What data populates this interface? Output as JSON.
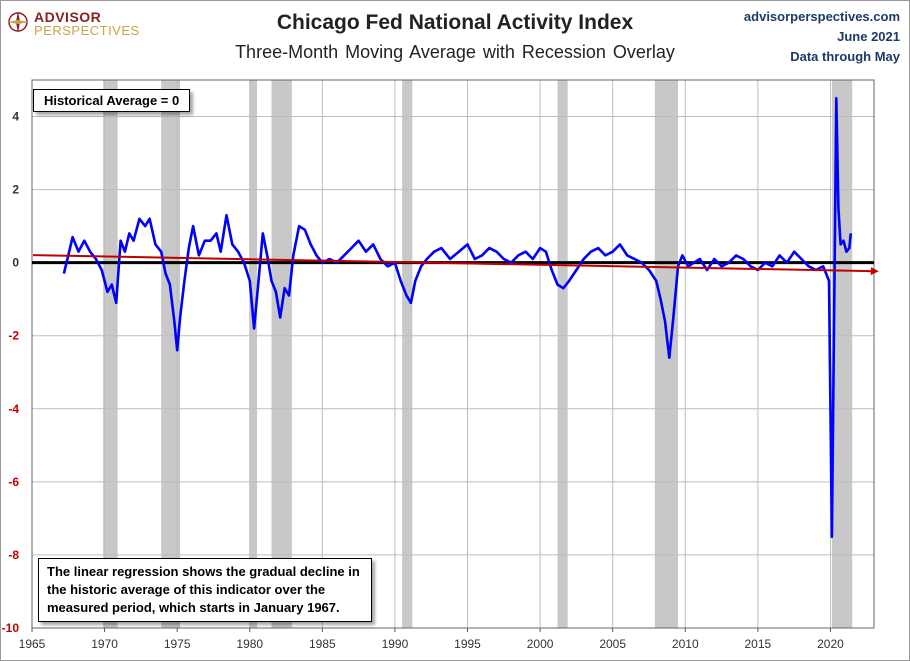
{
  "header": {
    "logo_line1": "ADVISOR",
    "logo_line2": "PERSPECTIVES",
    "title": "Chicago Fed National Activity Index",
    "subtitle": "Three-Month Moving Average with Recession Overlay",
    "source_site": "advisorperspectives.com",
    "source_date": "June 2021",
    "source_note": "Data through May"
  },
  "annotations": {
    "historical_average": "Historical Average = 0",
    "regression_note": "The linear regression shows the gradual decline in the historic average of this indicator over the measured period, which starts in January 1967."
  },
  "colors": {
    "series": "#0000ff",
    "regression": "#c00000",
    "zero_line": "#000000",
    "recession": "#c8c8c8",
    "grid": "#bdbdbd",
    "negative_tick": "#c00000",
    "logo_red": "#8b1e1e",
    "logo_gold": "#c9a24a",
    "source_text": "#1d3a6a"
  },
  "chart_data": {
    "type": "line",
    "xlim": [
      1965,
      2023
    ],
    "ylim": [
      -10,
      5
    ],
    "x_ticks": [
      1965,
      1970,
      1975,
      1980,
      1985,
      1990,
      1995,
      2000,
      2005,
      2010,
      2015,
      2020
    ],
    "y_ticks": [
      -10,
      -8,
      -6,
      -4,
      -2,
      0,
      2,
      4
    ],
    "grid": true,
    "recessions": [
      [
        1969.9,
        1970.9
      ],
      [
        1973.9,
        1975.2
      ],
      [
        1980.0,
        1980.5
      ],
      [
        1981.5,
        1982.9
      ],
      [
        1990.5,
        1991.2
      ],
      [
        2001.2,
        2001.9
      ],
      [
        2007.9,
        2009.5
      ],
      [
        2020.1,
        2021.5
      ]
    ],
    "historical_average": 0,
    "regression": {
      "x": [
        1967.0,
        2021.4
      ],
      "y": [
        0.18,
        -0.18
      ]
    },
    "series": [
      {
        "x": [
          1967.2,
          1967.5,
          1967.8,
          1968.2,
          1968.6,
          1969.0,
          1969.4,
          1969.8,
          1970.2,
          1970.5,
          1970.8,
          1971.1,
          1971.4,
          1971.7,
          1972.0,
          1972.4,
          1972.8,
          1973.1,
          1973.5,
          1973.9,
          1974.2,
          1974.5,
          1974.8,
          1975.0,
          1975.2,
          1975.5,
          1975.8,
          1976.1,
          1976.5,
          1976.9,
          1977.3,
          1977.7,
          1978.0,
          1978.4,
          1978.8,
          1979.2,
          1979.6,
          1980.0,
          1980.3,
          1980.6,
          1980.9,
          1981.2,
          1981.5,
          1981.8,
          1982.1,
          1982.4,
          1982.7,
          1983.0,
          1983.4,
          1983.8,
          1984.2,
          1984.6,
          1985.0,
          1985.5,
          1986.0,
          1986.5,
          1987.0,
          1987.5,
          1988.0,
          1988.5,
          1989.0,
          1989.5,
          1990.0,
          1990.4,
          1990.8,
          1991.1,
          1991.4,
          1991.8,
          1992.2,
          1992.7,
          1993.2,
          1993.8,
          1994.4,
          1995.0,
          1995.5,
          1996.0,
          1996.5,
          1997.0,
          1997.5,
          1998.0,
          1998.5,
          1999.0,
          1999.5,
          2000.0,
          2000.4,
          2000.8,
          2001.2,
          2001.6,
          2002.0,
          2002.5,
          2003.0,
          2003.5,
          2004.0,
          2004.5,
          2005.0,
          2005.5,
          2006.0,
          2006.5,
          2007.0,
          2007.5,
          2008.0,
          2008.3,
          2008.6,
          2008.9,
          2009.2,
          2009.5,
          2009.8,
          2010.2,
          2010.6,
          2011.0,
          2011.5,
          2012.0,
          2012.5,
          2013.0,
          2013.5,
          2014.0,
          2014.5,
          2015.0,
          2015.5,
          2016.0,
          2016.5,
          2017.0,
          2017.5,
          2018.0,
          2018.5,
          2019.0,
          2019.5,
          2019.9,
          2020.1,
          2020.25,
          2020.4,
          2020.55,
          2020.7,
          2020.9,
          2021.1,
          2021.3,
          2021.4
        ],
        "y": [
          -0.3,
          0.2,
          0.7,
          0.3,
          0.6,
          0.3,
          0.1,
          -0.2,
          -0.8,
          -0.6,
          -1.1,
          0.6,
          0.3,
          0.8,
          0.6,
          1.2,
          1.0,
          1.2,
          0.5,
          0.3,
          -0.3,
          -0.6,
          -1.6,
          -2.4,
          -1.5,
          -0.5,
          0.4,
          1.0,
          0.2,
          0.6,
          0.6,
          0.8,
          0.3,
          1.3,
          0.5,
          0.3,
          0.0,
          -0.5,
          -1.8,
          -0.5,
          0.8,
          0.2,
          -0.5,
          -0.8,
          -1.5,
          -0.7,
          -0.9,
          0.2,
          1.0,
          0.9,
          0.5,
          0.2,
          0.0,
          0.1,
          0.0,
          0.2,
          0.4,
          0.6,
          0.3,
          0.5,
          0.1,
          -0.1,
          0.0,
          -0.5,
          -0.9,
          -1.1,
          -0.5,
          -0.1,
          0.1,
          0.3,
          0.4,
          0.1,
          0.3,
          0.5,
          0.1,
          0.2,
          0.4,
          0.3,
          0.1,
          0.0,
          0.2,
          0.3,
          0.1,
          0.4,
          0.3,
          -0.2,
          -0.6,
          -0.7,
          -0.5,
          -0.2,
          0.1,
          0.3,
          0.4,
          0.2,
          0.3,
          0.5,
          0.2,
          0.1,
          0.0,
          -0.2,
          -0.5,
          -1.0,
          -1.6,
          -2.6,
          -1.4,
          -0.1,
          0.2,
          -0.1,
          0.0,
          0.1,
          -0.2,
          0.1,
          -0.1,
          0.0,
          0.2,
          0.1,
          -0.1,
          -0.2,
          0.0,
          -0.1,
          0.2,
          0.0,
          0.3,
          0.1,
          -0.1,
          -0.2,
          -0.1,
          -0.5,
          -7.5,
          -1.5,
          4.5,
          1.5,
          0.5,
          0.6,
          0.3,
          0.4,
          0.8
        ]
      }
    ]
  }
}
